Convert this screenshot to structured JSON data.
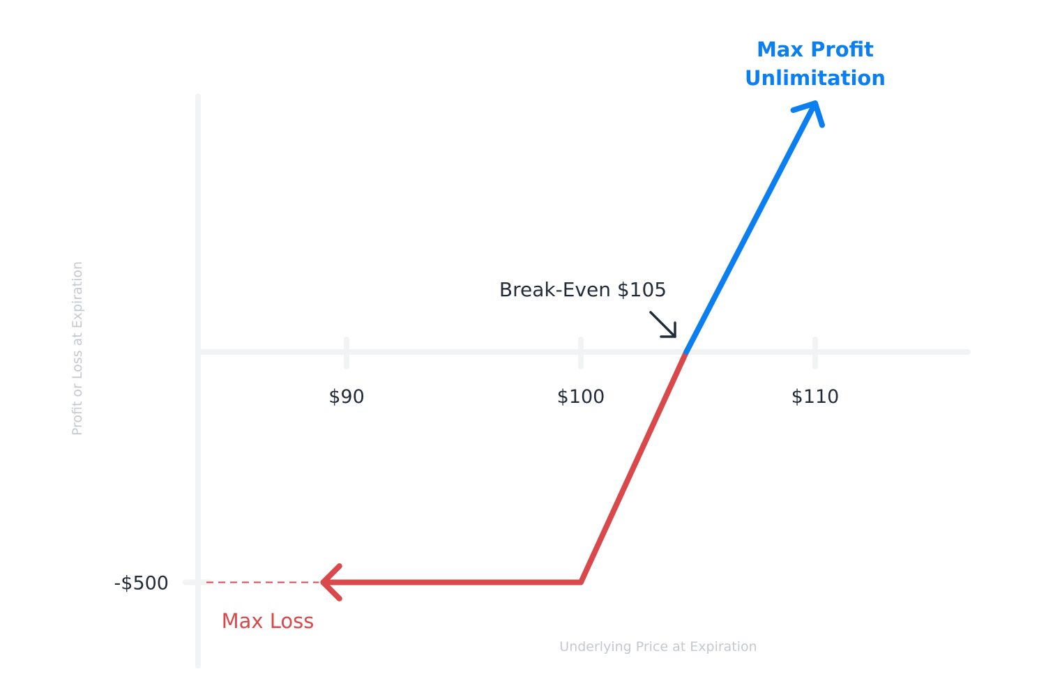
{
  "colors": {
    "axis": "#f2f3f5",
    "loss": "#d9484b",
    "profit": "#0b7ff0",
    "text_dark": "#222b3a",
    "axis_title": "#c4c8cf"
  },
  "chart_data": {
    "type": "line",
    "title": "",
    "xlabel": "Underlying Price at Expiration",
    "ylabel": "Profit or Loss at Expiration",
    "x_ticks": [
      {
        "value": 90,
        "label": "$90"
      },
      {
        "value": 100,
        "label": "$100"
      },
      {
        "value": 110,
        "label": "$110"
      }
    ],
    "y_ticks": [
      {
        "value": -500,
        "label": "-$500"
      }
    ],
    "series": [
      {
        "role": "loss",
        "color": "#d9484b",
        "points": [
          [
            89,
            -500
          ],
          [
            100,
            -500
          ],
          [
            104.5,
            0
          ]
        ],
        "arrow": "start",
        "dashed_extension_to_axis": true
      },
      {
        "role": "profit",
        "color": "#0b7ff0",
        "points": [
          [
            104.5,
            0
          ],
          [
            110,
            540
          ]
        ],
        "arrow": "end"
      }
    ],
    "annotations": {
      "break_even": "Break-Even $105",
      "max_profit_line1": "Max Profit",
      "max_profit_line2": "Unlimitation",
      "max_loss": "Max Loss"
    },
    "grid": false
  }
}
